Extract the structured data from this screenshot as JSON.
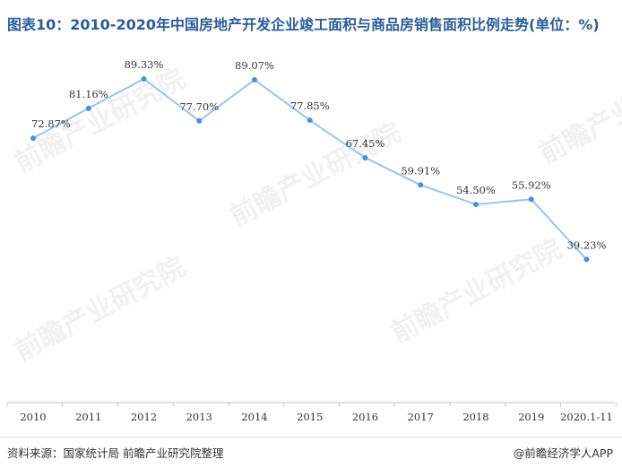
{
  "title": "图表10：2010-2020年中国房地产开发企业竣工面积与商品房销售面积比例走势(单位：%)",
  "source": "资料来源：国家统计局 前瞻产业研究院整理",
  "credit": "@前瞻经济学人APP",
  "watermark": "前瞻产业研究院",
  "colors": {
    "line": "#9cc3ec",
    "point": "#4a8fe0",
    "title": "#2b5c9a"
  },
  "chart_data": {
    "type": "line",
    "categories": [
      "2010",
      "2011",
      "2012",
      "2013",
      "2014",
      "2015",
      "2016",
      "2017",
      "2018",
      "2019",
      "2020.1-11"
    ],
    "values": [
      72.87,
      81.16,
      89.33,
      77.7,
      89.07,
      77.85,
      67.45,
      59.91,
      54.5,
      55.92,
      39.23
    ],
    "data_labels": [
      "72.87%",
      "81.16%",
      "89.33%",
      "77.70%",
      "89.07%",
      "77.85%",
      "67.45%",
      "59.91%",
      "54.50%",
      "55.92%",
      "39.23%"
    ],
    "xlabel": "",
    "ylabel": "",
    "grid": false,
    "legend": "none"
  }
}
